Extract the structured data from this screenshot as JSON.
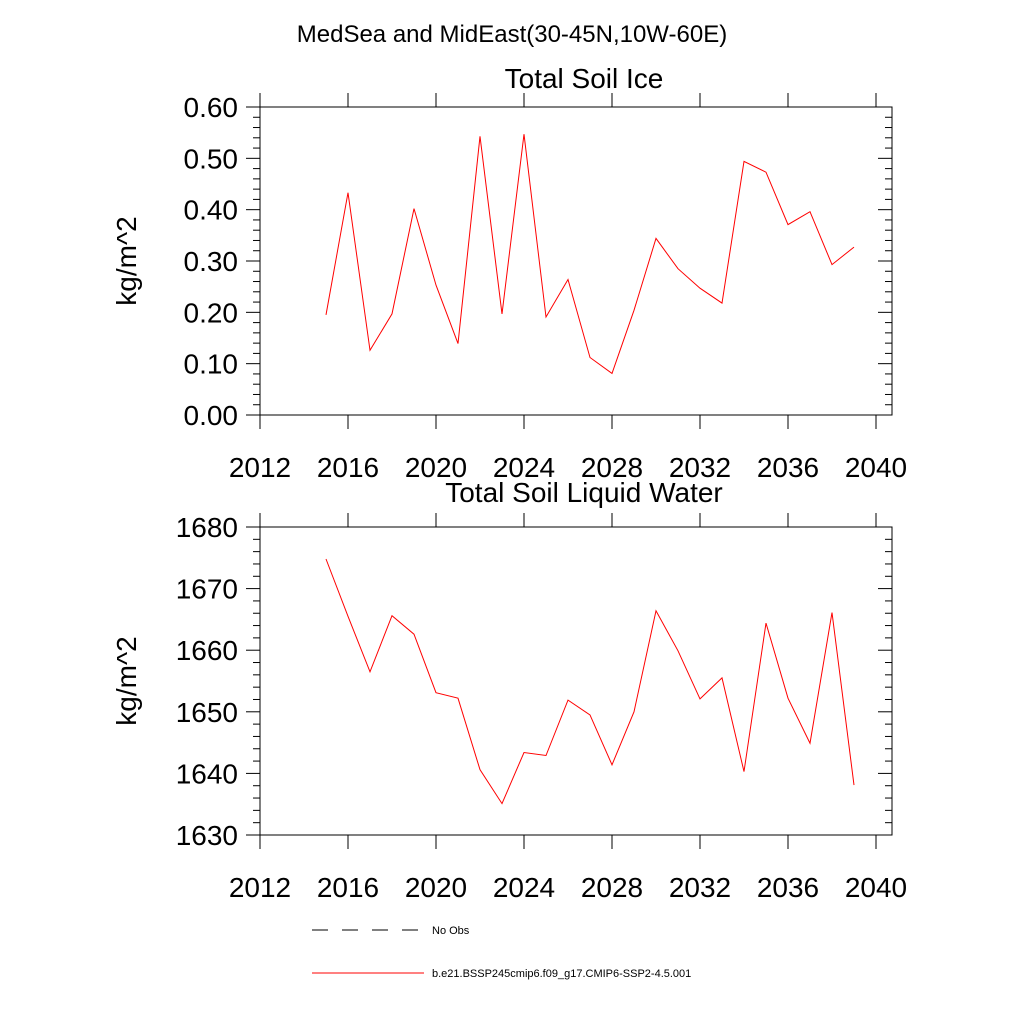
{
  "figure": {
    "suptitle": "MedSea and MidEast(30-45N,10W-60E)"
  },
  "colors": {
    "model": "#ff0000",
    "obs": "#000000"
  },
  "chart_data": [
    {
      "type": "line",
      "title": "Total Soil Ice",
      "xlabel": "",
      "ylabel": "kg/m^2",
      "xlim": [
        2012,
        2040
      ],
      "ylim": [
        0.0,
        0.6
      ],
      "xticks": [
        2012,
        2016,
        2020,
        2024,
        2028,
        2032,
        2036,
        2040
      ],
      "xtick_labels": [
        "2012",
        "2016",
        "2020",
        "2024",
        "2028",
        "2032",
        "2036",
        "2040"
      ],
      "yticks": [
        0.0,
        0.1,
        0.2,
        0.3,
        0.4,
        0.5,
        0.6
      ],
      "ytick_labels": [
        "0.00",
        "0.10",
        "0.20",
        "0.30",
        "0.40",
        "0.50",
        "0.60"
      ],
      "grid": false,
      "series": [
        {
          "name": "b.e21.BSSP245cmip6.f09_g17.CMIP6-SSP2-4.5.001",
          "x": [
            2015,
            2016,
            2017,
            2018,
            2019,
            2020,
            2021,
            2022,
            2023,
            2024,
            2025,
            2026,
            2027,
            2028,
            2029,
            2030,
            2031,
            2032,
            2033,
            2034,
            2035,
            2036,
            2037,
            2038,
            2039
          ],
          "values": [
            0.195,
            0.433,
            0.126,
            0.197,
            0.402,
            0.253,
            0.139,
            0.543,
            0.197,
            0.547,
            0.191,
            0.264,
            0.112,
            0.081,
            0.204,
            0.344,
            0.285,
            0.247,
            0.218,
            0.494,
            0.473,
            0.371,
            0.396,
            0.293,
            0.327
          ]
        }
      ]
    },
    {
      "type": "line",
      "title": "Total Soil Liquid Water",
      "xlabel": "",
      "ylabel": "kg/m^2",
      "xlim": [
        2012,
        2040
      ],
      "ylim": [
        1630,
        1680
      ],
      "xticks": [
        2012,
        2016,
        2020,
        2024,
        2028,
        2032,
        2036,
        2040
      ],
      "xtick_labels": [
        "2012",
        "2016",
        "2020",
        "2024",
        "2028",
        "2032",
        "2036",
        "2040"
      ],
      "yticks": [
        1630,
        1640,
        1650,
        1660,
        1670,
        1680
      ],
      "ytick_labels": [
        "1630",
        "1640",
        "1650",
        "1660",
        "1670",
        "1680"
      ],
      "grid": false,
      "series": [
        {
          "name": "b.e21.BSSP245cmip6.f09_g17.CMIP6-SSP2-4.5.001",
          "x": [
            2015,
            2016,
            2017,
            2018,
            2019,
            2020,
            2021,
            2022,
            2023,
            2024,
            2025,
            2026,
            2027,
            2028,
            2029,
            2030,
            2031,
            2032,
            2033,
            2034,
            2035,
            2036,
            2037,
            2038,
            2039
          ],
          "values": [
            1674.8,
            1665.5,
            1656.5,
            1665.6,
            1662.6,
            1653.1,
            1652.2,
            1640.6,
            1635.1,
            1643.4,
            1642.9,
            1651.9,
            1649.5,
            1641.4,
            1650.0,
            1666.4,
            1659.9,
            1652.1,
            1655.5,
            1640.3,
            1664.4,
            1652.2,
            1644.9,
            1666.1,
            1638.1
          ]
        }
      ]
    }
  ],
  "legend": {
    "placement": "bottom",
    "entries": [
      {
        "label": "No Obs",
        "style": "dashed",
        "color": "#000000"
      },
      {
        "label": "b.e21.BSSP245cmip6.f09_g17.CMIP6-SSP2-4.5.001",
        "style": "solid",
        "color": "#ff0000"
      }
    ]
  }
}
